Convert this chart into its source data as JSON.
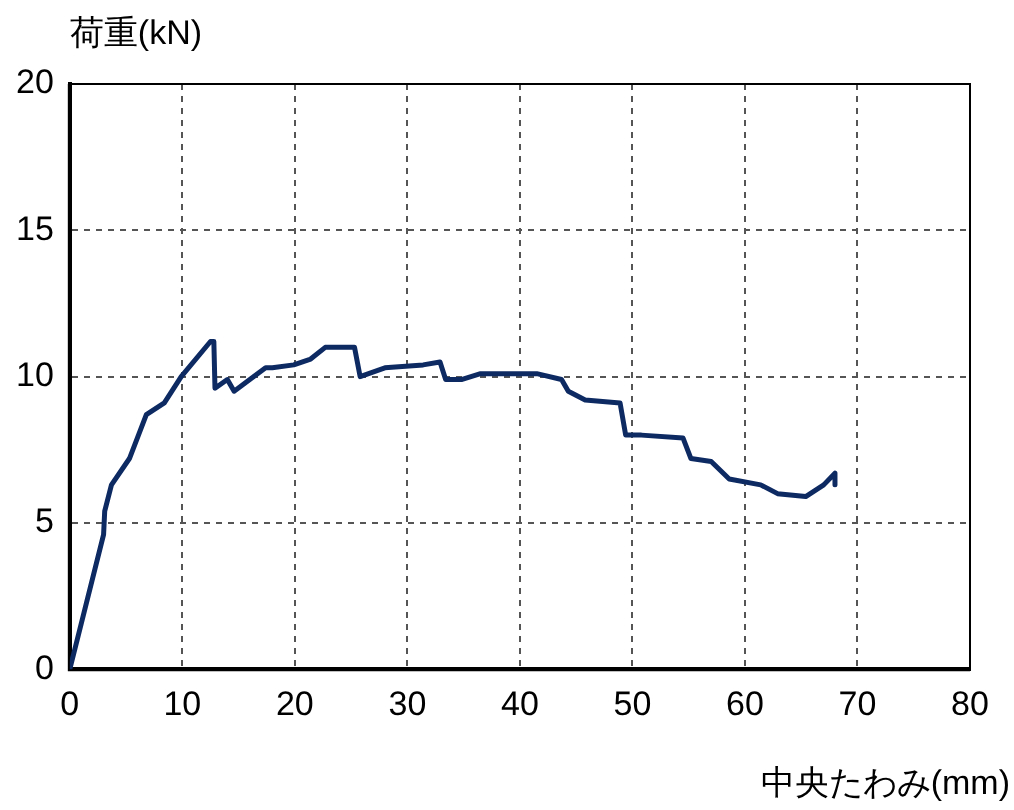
{
  "chart_data": {
    "type": "line",
    "xlabel": "中央たわみ(mm)",
    "ylabel": "荷重(kN)",
    "series": [
      {
        "color": "#0d2a63",
        "x": [
          0,
          3.0,
          3.1,
          3.7,
          5.3,
          6.8,
          8.4,
          9.9,
          12.5,
          12.8,
          12.9,
          14.0,
          14.6,
          17.4,
          18.0,
          19.9,
          21.4,
          22.7,
          24.2,
          25.3,
          25.8,
          28.0,
          31.4,
          32.9,
          33.4,
          34.8,
          36.5,
          41.5,
          43.7,
          44.3,
          45.8,
          48.9,
          49.4,
          50.8,
          54.5,
          55.2,
          57.0,
          58.6,
          61.4,
          62.9,
          65.4,
          67.0,
          68.0,
          68.0
        ],
        "values": [
          0,
          4.6,
          5.4,
          6.3,
          7.2,
          8.7,
          9.1,
          10.0,
          11.2,
          11.2,
          9.6,
          9.9,
          9.5,
          10.3,
          10.3,
          10.4,
          10.6,
          11.0,
          11.0,
          11.0,
          10.0,
          10.3,
          10.4,
          10.5,
          9.9,
          9.9,
          10.1,
          10.1,
          9.9,
          9.5,
          9.2,
          9.1,
          8.0,
          8.0,
          7.9,
          7.2,
          7.1,
          6.5,
          6.3,
          6.0,
          5.9,
          6.3,
          6.7,
          6.3
        ]
      }
    ],
    "xlim": [
      0,
      80
    ],
    "xticks": [
      0,
      10,
      20,
      30,
      40,
      50,
      60,
      70,
      80
    ],
    "ylim": [
      0,
      20
    ],
    "yticks": [
      0,
      5,
      10,
      15,
      20
    ],
    "grid": true,
    "marker": "none",
    "line_style": "solid",
    "legend": false
  }
}
